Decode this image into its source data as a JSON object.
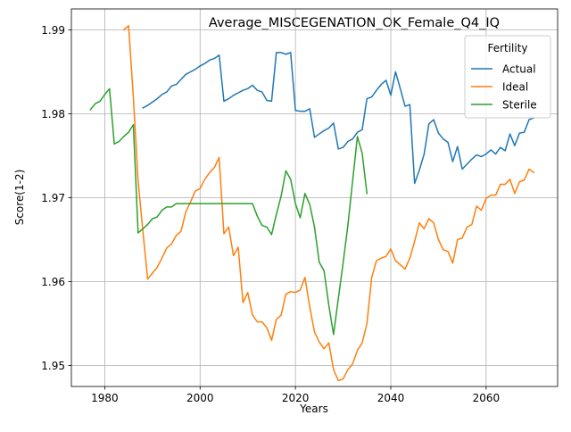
{
  "colors": {
    "Actual": "#1f77b4",
    "Ideal": "#ff7f0e",
    "Sterile": "#2ca02c",
    "grid": "#b0b0b0",
    "axis": "#000000"
  },
  "chart_data": {
    "type": "line",
    "title": "Average_MISCEGENATION_OK_Female_Q4_IQ",
    "xlabel": "Years",
    "ylabel": "Score(1-2)",
    "xlim": [
      1973,
      2075
    ],
    "ylim": [
      1.9475,
      1.9925
    ],
    "xticks": [
      1980,
      2000,
      2020,
      2040,
      2060
    ],
    "yticks": [
      1.95,
      1.96,
      1.97,
      1.98,
      1.99
    ],
    "xtick_labels": [
      "1980",
      "2000",
      "2020",
      "2040",
      "2060"
    ],
    "ytick_labels": [
      "1.95",
      "1.96",
      "1.97",
      "1.98",
      "1.99"
    ],
    "grid": true,
    "legend": {
      "title": "Fertility",
      "position": "upper-right",
      "entries": [
        "Actual",
        "Ideal",
        "Sterile"
      ]
    },
    "series": [
      {
        "name": "Actual",
        "x": [
          1988,
          1989,
          1990,
          1991,
          1992,
          1993,
          1994,
          1995,
          1996,
          1997,
          1998,
          1999,
          2000,
          2001,
          2002,
          2003,
          2004,
          2005,
          2006,
          2007,
          2008,
          2009,
          2010,
          2011,
          2012,
          2013,
          2014,
          2015,
          2016,
          2017,
          2018,
          2019,
          2020,
          2021,
          2022,
          2023,
          2024,
          2025,
          2026,
          2027,
          2028,
          2029,
          2030,
          2031,
          2032,
          2033,
          2034,
          2035,
          2036,
          2037,
          2038,
          2039,
          2040,
          2041,
          2042,
          2043,
          2044,
          2045,
          2046,
          2047,
          2048,
          2049,
          2050,
          2051,
          2052,
          2053,
          2054,
          2055,
          2056,
          2057,
          2058,
          2059,
          2060,
          2061,
          2062,
          2063,
          2064,
          2065,
          2066,
          2067,
          2068,
          2069,
          2070
        ],
        "y": [
          1.9807,
          1.981,
          1.9814,
          1.9818,
          1.9823,
          1.9826,
          1.9833,
          1.9835,
          1.9841,
          1.9847,
          1.985,
          1.9853,
          1.9857,
          1.986,
          1.9864,
          1.9866,
          1.987,
          1.9815,
          1.9818,
          1.9822,
          1.9825,
          1.9828,
          1.983,
          1.9834,
          1.9828,
          1.9826,
          1.9816,
          1.9815,
          1.9873,
          1.9873,
          1.9871,
          1.9873,
          1.9804,
          1.9803,
          1.9803,
          1.9806,
          1.9772,
          1.9776,
          1.978,
          1.9783,
          1.9789,
          1.9758,
          1.976,
          1.9767,
          1.977,
          1.9778,
          1.9781,
          1.9818,
          1.982,
          1.9828,
          1.9835,
          1.984,
          1.9822,
          1.985,
          1.983,
          1.9809,
          1.9811,
          1.9717,
          1.9733,
          1.9752,
          1.9788,
          1.9793,
          1.9777,
          1.977,
          1.9766,
          1.9743,
          1.9761,
          1.9734,
          1.974,
          1.9746,
          1.9751,
          1.9749,
          1.9752,
          1.9757,
          1.9752,
          1.976,
          1.9756,
          1.9776,
          1.9762,
          1.9777,
          1.9778,
          1.9793,
          1.9795
        ]
      },
      {
        "name": "Ideal",
        "x": [
          1984,
          1985,
          1986,
          1987,
          1988,
          1989,
          1990,
          1991,
          1992,
          1993,
          1994,
          1995,
          1996,
          1997,
          1998,
          1999,
          2000,
          2001,
          2002,
          2003,
          2004,
          2005,
          2006,
          2007,
          2008,
          2009,
          2010,
          2011,
          2012,
          2013,
          2014,
          2015,
          2016,
          2017,
          2018,
          2019,
          2020,
          2021,
          2022,
          2023,
          2024,
          2025,
          2026,
          2027,
          2028,
          2029,
          2030,
          2031,
          2032,
          2033,
          2034,
          2035,
          2036,
          2037,
          2038,
          2039,
          2040,
          2041,
          2042,
          2043,
          2044,
          2045,
          2046,
          2047,
          2048,
          2049,
          2050,
          2051,
          2052,
          2053,
          2054,
          2055,
          2056,
          2057,
          2058,
          2059,
          2060,
          2061,
          2062,
          2063,
          2064,
          2065,
          2066,
          2067,
          2068,
          2069,
          2070
        ],
        "y": [
          1.99,
          1.9905,
          1.982,
          1.972,
          1.966,
          1.9603,
          1.961,
          1.9617,
          1.9628,
          1.964,
          1.9645,
          1.9655,
          1.966,
          1.9683,
          1.9695,
          1.9708,
          1.9711,
          1.9722,
          1.973,
          1.9736,
          1.9748,
          1.9657,
          1.9665,
          1.9631,
          1.9641,
          1.9575,
          1.9587,
          1.956,
          1.9552,
          1.9552,
          1.9545,
          1.953,
          1.9555,
          1.956,
          1.9585,
          1.9588,
          1.9587,
          1.959,
          1.9605,
          1.957,
          1.954,
          1.9528,
          1.952,
          1.9527,
          1.9495,
          1.9482,
          1.9484,
          1.9495,
          1.9502,
          1.9518,
          1.9527,
          1.955,
          1.9605,
          1.9625,
          1.9628,
          1.963,
          1.9639,
          1.9625,
          1.962,
          1.9615,
          1.9628,
          1.9648,
          1.967,
          1.9663,
          1.9675,
          1.967,
          1.965,
          1.9638,
          1.9636,
          1.9622,
          1.965,
          1.9652,
          1.9665,
          1.9668,
          1.969,
          1.9685,
          1.9699,
          1.9703,
          1.9703,
          1.9716,
          1.9716,
          1.9722,
          1.9705,
          1.9719,
          1.9721,
          1.9734,
          1.973
        ]
      },
      {
        "name": "Sterile",
        "x": [
          1977,
          1978,
          1979,
          1980,
          1981,
          1982,
          1983,
          1984,
          1985,
          1986,
          1987,
          1988,
          1989,
          1990,
          1991,
          1992,
          1993,
          1994,
          1995,
          1996,
          1997,
          1998,
          1999,
          2000,
          2001,
          2002,
          2003,
          2004,
          2005,
          2006,
          2007,
          2008,
          2009,
          2010,
          2011,
          2012,
          2013,
          2014,
          2015,
          2016,
          2017,
          2018,
          2019,
          2020,
          2021,
          2022,
          2023,
          2024,
          2025,
          2026,
          2027,
          2028,
          2029,
          2030,
          2031,
          2032,
          2033,
          2034,
          2035
        ],
        "y": [
          1.9805,
          1.9812,
          1.9815,
          1.9823,
          1.983,
          1.9764,
          1.9767,
          1.9773,
          1.9778,
          1.9787,
          1.9658,
          1.9663,
          1.9668,
          1.9675,
          1.9677,
          1.9685,
          1.9689,
          1.9689,
          1.9693,
          1.9693,
          1.9693,
          1.9693,
          1.9693,
          1.9693,
          1.9693,
          1.9693,
          1.9693,
          1.9693,
          1.9693,
          1.9693,
          1.9693,
          1.9693,
          1.9693,
          1.9693,
          1.9693,
          1.9678,
          1.9667,
          1.9665,
          1.9656,
          1.968,
          1.9702,
          1.9732,
          1.9722,
          1.9693,
          1.9676,
          1.9705,
          1.9692,
          1.9665,
          1.9623,
          1.9613,
          1.9572,
          1.9537,
          1.958,
          1.9622,
          1.9667,
          1.972,
          1.9773,
          1.9753,
          1.9705
        ]
      }
    ]
  }
}
